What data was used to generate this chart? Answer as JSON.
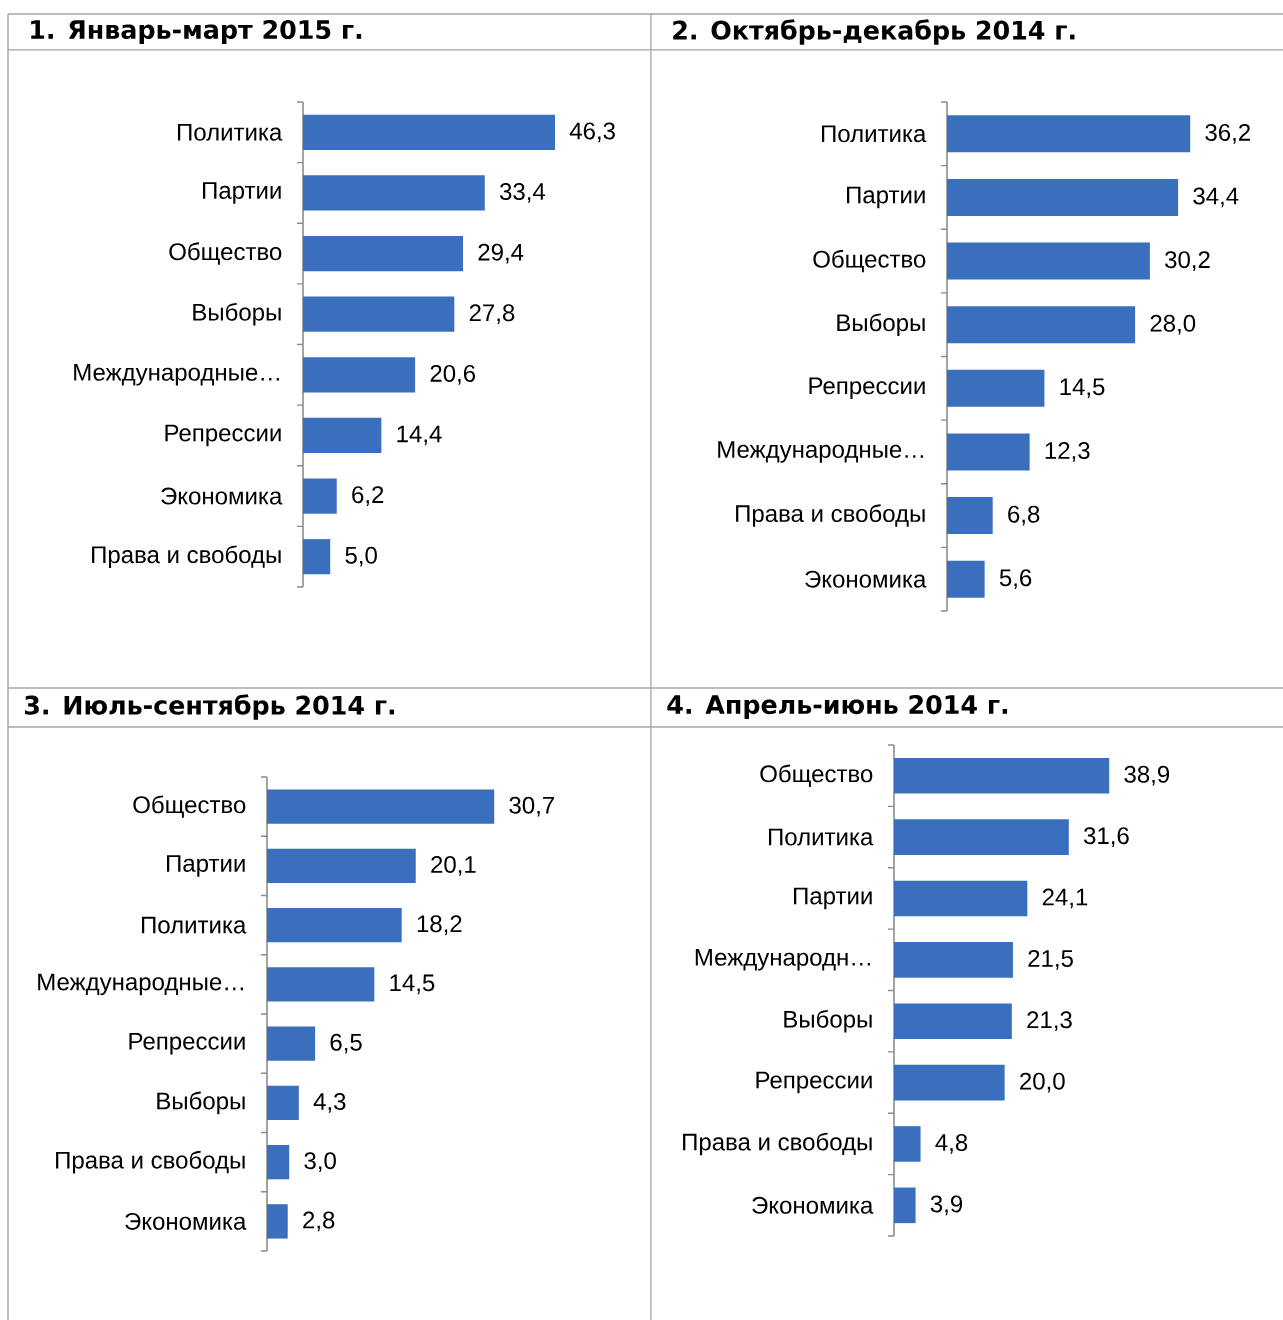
{
  "chart_data": [
    {
      "type": "bar",
      "orientation": "horizontal",
      "title": "1. Январь-март 2015 г.",
      "categories": [
        "Политика",
        "Партии",
        "Общество",
        "Выборы",
        "Международные…",
        "Репрессии",
        "Экономика",
        "Права и свободы"
      ],
      "values": [
        46.3,
        33.4,
        29.4,
        27.8,
        20.6,
        14.4,
        6.2,
        5.0
      ],
      "value_labels": [
        "46,3",
        "33,4",
        "29,4",
        "27,8",
        "20,6",
        "14,4",
        "6,2",
        "5,0"
      ],
      "color": "#3a6fbe"
    },
    {
      "type": "bar",
      "orientation": "horizontal",
      "title": "2. Октябрь-декабрь 2014 г.",
      "categories": [
        "Политика",
        "Партии",
        "Общество",
        "Выборы",
        "Репрессии",
        "Международные…",
        "Права и свободы",
        "Экономика"
      ],
      "values": [
        36.2,
        34.4,
        30.2,
        28.0,
        14.5,
        12.3,
        6.8,
        5.6
      ],
      "value_labels": [
        "36,2",
        "34,4",
        "30,2",
        "28,0",
        "14,5",
        "12,3",
        "6,8",
        "5,6"
      ],
      "color": "#3a6fbe"
    },
    {
      "type": "bar",
      "orientation": "horizontal",
      "title": "3. Июль-сентябрь 2014 г.",
      "categories": [
        "Общество",
        "Партии",
        "Политика",
        "Международные…",
        "Репрессии",
        "Выборы",
        "Права и свободы",
        "Экономика"
      ],
      "values": [
        30.7,
        20.1,
        18.2,
        14.5,
        6.5,
        4.3,
        3.0,
        2.8
      ],
      "value_labels": [
        "30,7",
        "20,1",
        "18,2",
        "14,5",
        "6,5",
        "4,3",
        "3,0",
        "2,8"
      ],
      "color": "#3a6fbe"
    },
    {
      "type": "bar",
      "orientation": "horizontal",
      "title": "4. Апрель-июнь 2014 г.",
      "categories": [
        "Общество",
        "Политика",
        "Партии",
        "Международн…",
        "Выборы",
        "Репрессии",
        "Права и свободы",
        "Экономика"
      ],
      "values": [
        38.9,
        31.6,
        24.1,
        21.5,
        21.3,
        20.0,
        4.8,
        3.9
      ],
      "value_labels": [
        "38,9",
        "31,6",
        "24,1",
        "21,5",
        "21,3",
        "20,0",
        "4,8",
        "3,9"
      ],
      "color": "#3a6fbe"
    }
  ]
}
